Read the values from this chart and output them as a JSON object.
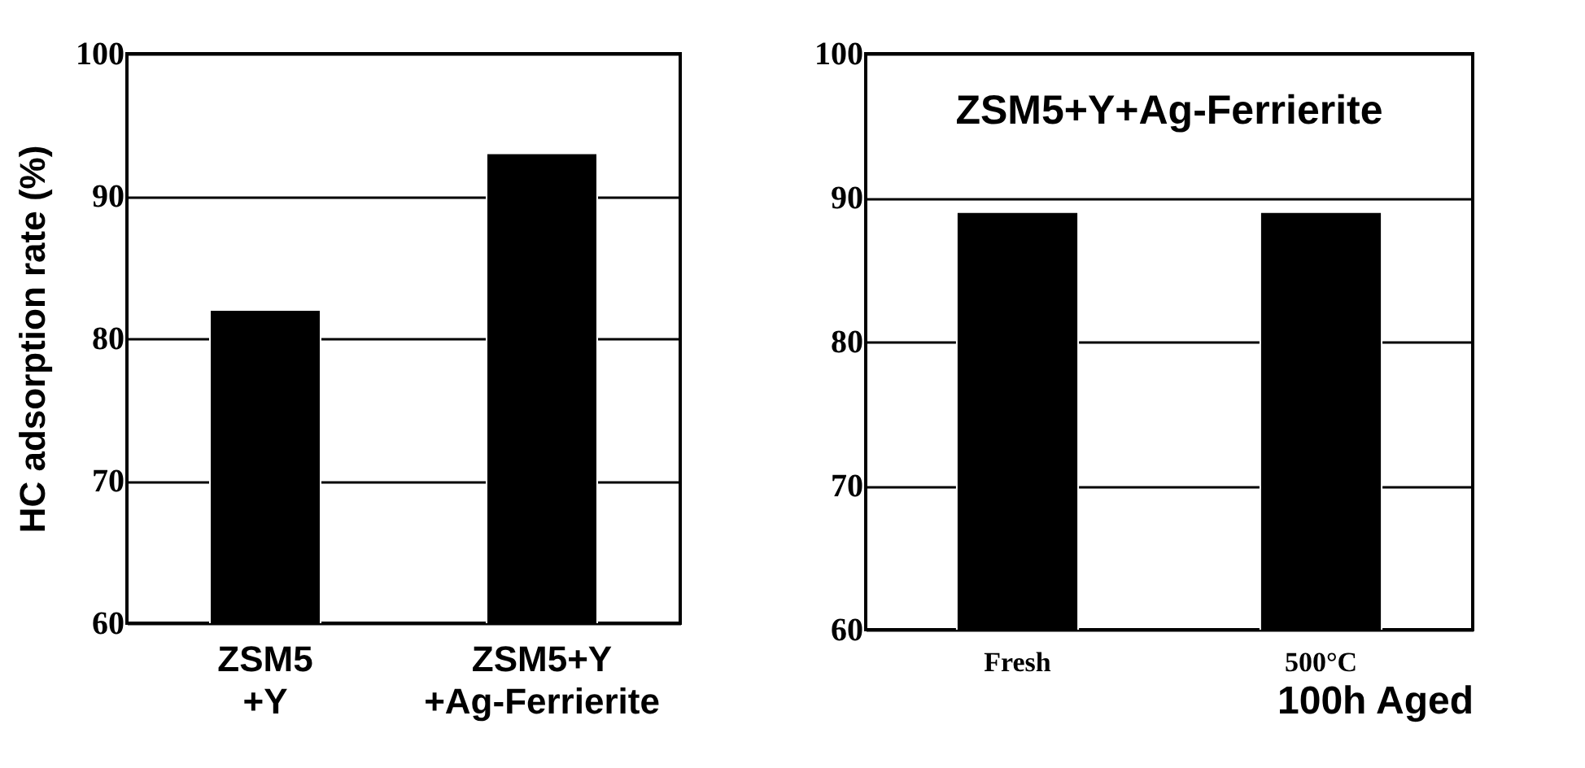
{
  "chart_data": [
    {
      "type": "bar",
      "ylabel": "HC adsorption rate (%)",
      "categories": [
        "ZSM5\n+Y",
        "ZSM5+Y\n+Ag-Ferrierite"
      ],
      "values": [
        82,
        93
      ],
      "color": "#000000",
      "ylim": [
        60,
        100
      ],
      "yticks": [
        60,
        70,
        80,
        90,
        100
      ],
      "grid": "y"
    },
    {
      "type": "bar",
      "title": "ZSM5+Y+Ag-Ferrierite",
      "xlabel": "100h Aged",
      "categories": [
        "Fresh",
        "500°C"
      ],
      "values": [
        89,
        89
      ],
      "color": "#000000",
      "ylim": [
        60,
        100
      ],
      "yticks": [
        60,
        70,
        80,
        90,
        100
      ],
      "grid": "y"
    }
  ]
}
